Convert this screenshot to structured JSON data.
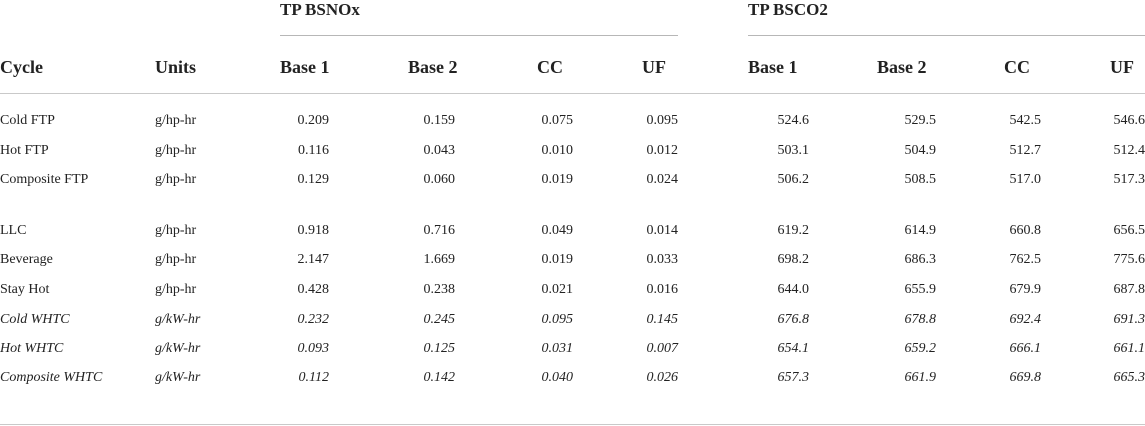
{
  "groups": {
    "nox_title": "TP BSNOx",
    "co2_title": "TP BSCO2"
  },
  "headers": {
    "cycle": "Cycle",
    "units": "Units",
    "nox_base1": "Base 1",
    "nox_base2": "Base 2",
    "nox_cc": "CC",
    "nox_uf": "UF",
    "co2_base1": "Base 1",
    "co2_base2": "Base 2",
    "co2_cc": "CC",
    "co2_uf": "UF"
  },
  "rows": [
    {
      "cycle": "Cold FTP",
      "units": "g/hp-hr",
      "nox": [
        "0.209",
        "0.159",
        "0.075",
        "0.095"
      ],
      "co2": [
        "524.6",
        "529.5",
        "542.5",
        "546.6"
      ],
      "italic": false
    },
    {
      "cycle": "Hot FTP",
      "units": "g/hp-hr",
      "nox": [
        "0.116",
        "0.043",
        "0.010",
        "0.012"
      ],
      "co2": [
        "503.1",
        "504.9",
        "512.7",
        "512.4"
      ],
      "italic": false
    },
    {
      "cycle": "Composite FTP",
      "units": "g/hp-hr",
      "nox": [
        "0.129",
        "0.060",
        "0.019",
        "0.024"
      ],
      "co2": [
        "506.2",
        "508.5",
        "517.0",
        "517.3"
      ],
      "italic": false
    },
    {
      "cycle": "LLC",
      "units": "g/hp-hr",
      "nox": [
        "0.918",
        "0.716",
        "0.049",
        "0.014"
      ],
      "co2": [
        "619.2",
        "614.9",
        "660.8",
        "656.5"
      ],
      "italic": false
    },
    {
      "cycle": "Beverage",
      "units": "g/hp-hr",
      "nox": [
        "2.147",
        "1.669",
        "0.019",
        "0.033"
      ],
      "co2": [
        "698.2",
        "686.3",
        "762.5",
        "775.6"
      ],
      "italic": false
    },
    {
      "cycle": "Stay Hot",
      "units": "g/hp-hr",
      "nox": [
        "0.428",
        "0.238",
        "0.021",
        "0.016"
      ],
      "co2": [
        "644.0",
        "655.9",
        "679.9",
        "687.8"
      ],
      "italic": false
    },
    {
      "cycle": "Cold WHTC",
      "units": "g/kW-hr",
      "nox": [
        "0.232",
        "0.245",
        "0.095",
        "0.145"
      ],
      "co2": [
        "676.8",
        "678.8",
        "692.4",
        "691.3"
      ],
      "italic": true
    },
    {
      "cycle": "Hot WHTC",
      "units": "g/kW-hr",
      "nox": [
        "0.093",
        "0.125",
        "0.031",
        "0.007"
      ],
      "co2": [
        "654.1",
        "659.2",
        "666.1",
        "661.1"
      ],
      "italic": true
    },
    {
      "cycle": "Composite WHTC",
      "units": "g/kW-hr",
      "nox": [
        "0.112",
        "0.142",
        "0.040",
        "0.026"
      ],
      "co2": [
        "657.3",
        "661.9",
        "669.8",
        "665.3"
      ],
      "italic": true
    }
  ]
}
